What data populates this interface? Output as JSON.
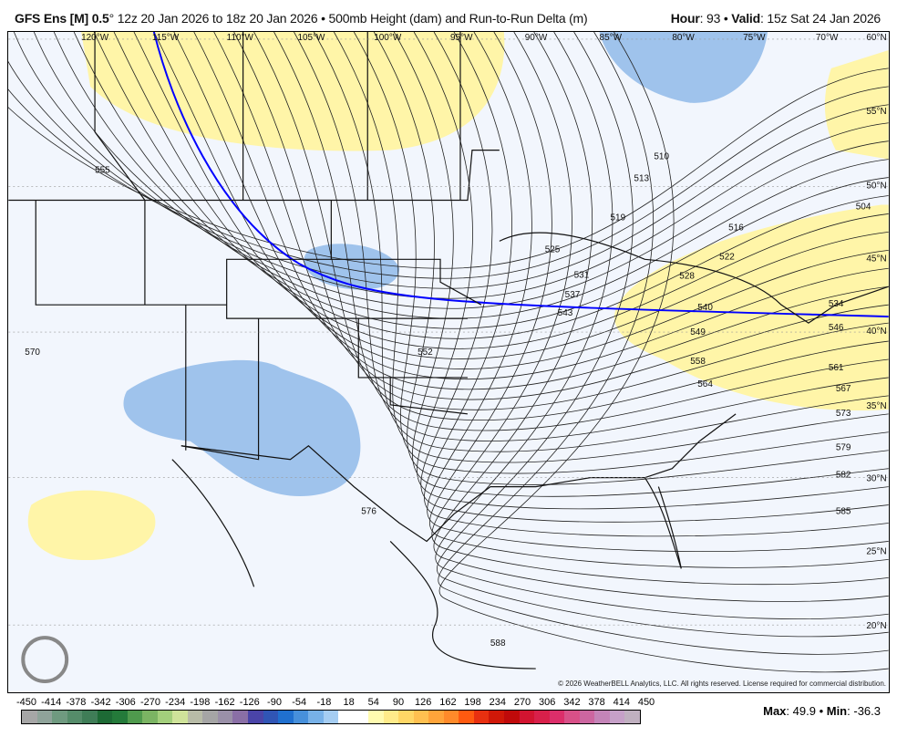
{
  "header": {
    "model": "GFS Ens [M] 0.5",
    "degree": "°",
    "runs": "12z 20 Jan 2026 to 18z 20 Jan 2026",
    "sep": "•",
    "product": "500mb Height (dam) and Run-to-Run Delta (m)",
    "hour_label": "Hour",
    "hour": "93",
    "valid_label": "Valid",
    "valid": "15z Sat 24 Jan 2026"
  },
  "map": {
    "lon_labels": [
      "120°W",
      "115°W",
      "110°W",
      "105°W",
      "100°W",
      "95°W",
      "90°W",
      "85°W",
      "80°W",
      "75°W",
      "70°W"
    ],
    "lat_labels": [
      "60°N",
      "55°N",
      "50°N",
      "45°N",
      "40°N",
      "35°N",
      "30°N",
      "25°N",
      "20°N"
    ],
    "contour_labels": [
      "555",
      "570",
      "510",
      "513",
      "516",
      "519",
      "522",
      "525",
      "528",
      "531",
      "537",
      "543",
      "540",
      "549",
      "552",
      "558",
      "564",
      "561",
      "567",
      "573",
      "579",
      "582",
      "585",
      "576",
      "588",
      "534",
      "546",
      "504"
    ],
    "copyright": "© 2026 WeatherBELL Analytics, LLC. All rights reserved. License required for commercial distribution.",
    "logo": "WeatherBELL",
    "colors": {
      "background": "#f2f6fd",
      "positive": "#fff5a8",
      "negative": "#9fc3ec",
      "highlight_contour": "#0000ff"
    }
  },
  "colorbar": {
    "labels": [
      "-450",
      "-414",
      "-378",
      "-342",
      "-306",
      "-270",
      "-234",
      "-198",
      "-162",
      "-126",
      "-90",
      "-54",
      "-18",
      "18",
      "54",
      "90",
      "126",
      "162",
      "198",
      "234",
      "270",
      "306",
      "342",
      "378",
      "414",
      "450"
    ],
    "colors": [
      "#a6a6a6",
      "#8fa39a",
      "#6f9a80",
      "#558c6a",
      "#3f7d57",
      "#1d6a35",
      "#247a3a",
      "#4f9a4d",
      "#7bb463",
      "#a3cf7c",
      "#cfe39a",
      "#b8bca7",
      "#a5a5a5",
      "#9a90a8",
      "#8a6fa6",
      "#4a44a8",
      "#3055b5",
      "#2070cf",
      "#4790db",
      "#77b1e8",
      "#a5cdf2",
      "#ffffff",
      "#ffffff",
      "#fffbb0",
      "#ffeb8a",
      "#ffd766",
      "#ffc050",
      "#ffa43a",
      "#ff8a2a",
      "#ff5a10",
      "#e83010",
      "#d01808",
      "#c00a0a",
      "#d21430",
      "#d8204a",
      "#dc2e6a",
      "#d85088",
      "#cc66a0",
      "#c484b8",
      "#c6a0c8",
      "#c0b0c0"
    ]
  },
  "stats": {
    "max_label": "Max",
    "max": "49.9",
    "min_label": "Min",
    "min": "-36.3"
  }
}
